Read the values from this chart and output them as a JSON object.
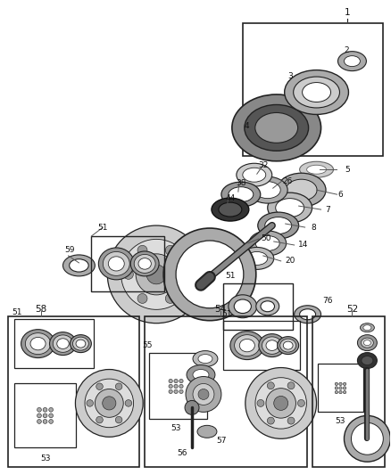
{
  "bg_color": "#ffffff",
  "dark": "#222222",
  "mid": "#888888",
  "light": "#cccccc",
  "fig_width": 4.38,
  "fig_height": 5.33,
  "dpi": 100
}
